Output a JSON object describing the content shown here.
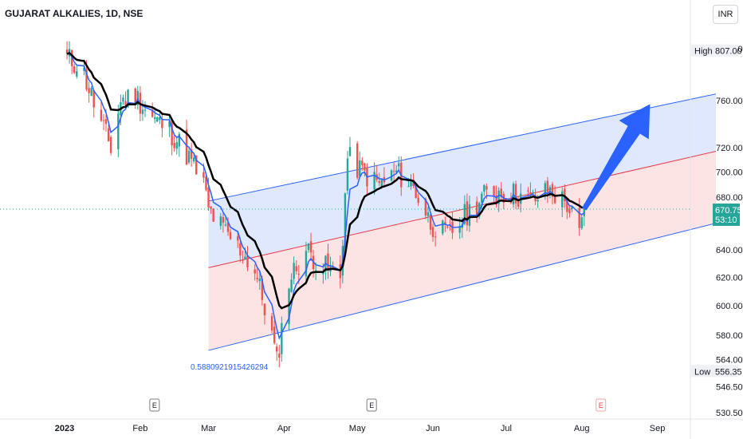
{
  "header": {
    "title": "GUJARAT ALKALIES, 1D, NSE",
    "currency": "INR"
  },
  "price_scale": {
    "high_label": "High",
    "high_value": "807.00",
    "low_label": "Low",
    "low_value": "556.35",
    "current_price": "670.75",
    "countdown": "53:10"
  },
  "colors": {
    "up": "#26a69a",
    "down": "#ef5350",
    "ema_fast": "#2962ff",
    "ema_slow": "#000000",
    "channel_line": "#2962ff",
    "channel_mid": "#f23645",
    "channel_upper_fill": "#dbe5fd",
    "channel_lower_fill": "#fde1e1",
    "arrow": "#2962ff",
    "current_price_tag": "#26a69a"
  },
  "annotations": {
    "channel_coefficient": "0.5880921915426294",
    "event_marker": "E"
  },
  "chart_data": {
    "type": "candlestick",
    "title": "GUJARAT ALKALIES, 1D, NSE",
    "y_ticks": [
      "807.00",
      "760.00",
      "720.00",
      "700.00",
      "680.00",
      "640.00",
      "620.00",
      "600.00",
      "580.00",
      "564.00",
      "546.50",
      "530.50"
    ],
    "x_ticks": [
      "2023",
      "Feb",
      "Mar",
      "Apr",
      "May",
      "Jun",
      "Jul",
      "Aug",
      "Sep"
    ],
    "scale": "log",
    "ylim": [
      530.5,
      807
    ],
    "events": [
      "Feb",
      "May",
      "Aug"
    ],
    "close_series": [
      [
        "Jan 1",
        800
      ],
      [
        "Jan 8",
        790
      ],
      [
        "Jan 15",
        745
      ],
      [
        "Jan 20",
        720
      ],
      [
        "Jan 24",
        760
      ],
      [
        "Jan 30",
        765
      ],
      [
        "Feb 6",
        745
      ],
      [
        "Feb 13",
        735
      ],
      [
        "Feb 20",
        715
      ],
      [
        "Feb 27",
        690
      ],
      [
        "Mar 1",
        670
      ],
      [
        "Mar 7",
        655
      ],
      [
        "Mar 14",
        640
      ],
      [
        "Mar 20",
        625
      ],
      [
        "Mar 27",
        580
      ],
      [
        "Mar 29",
        562
      ],
      [
        "Apr 3",
        618
      ],
      [
        "Apr 10",
        640
      ],
      [
        "Apr 17",
        628
      ],
      [
        "Apr 24",
        620
      ],
      [
        "Apr 27",
        712
      ],
      [
        "May 3",
        700
      ],
      [
        "May 10",
        690
      ],
      [
        "May 17",
        700
      ],
      [
        "May 24",
        688
      ],
      [
        "May 31",
        660
      ],
      [
        "Jun 7",
        650
      ],
      [
        "Jun 14",
        665
      ],
      [
        "Jun 21",
        680
      ],
      [
        "Jun 28",
        685
      ],
      [
        "Jul 5",
        682
      ],
      [
        "Jul 12",
        678
      ],
      [
        "Jul 19",
        685
      ],
      [
        "Jul 26",
        675
      ],
      [
        "Jul 31",
        650
      ],
      [
        "Aug 2",
        670.75
      ]
    ],
    "channel": {
      "start": "Mar 1",
      "end": "Sep 25",
      "upper": [
        677,
        766
      ],
      "middle": [
        627,
        717
      ],
      "lower": [
        570,
        660
      ]
    },
    "arrow": {
      "from": [
        "Aug 2",
        670.75
      ],
      "to": [
        "Aug 29",
        757
      ]
    }
  }
}
